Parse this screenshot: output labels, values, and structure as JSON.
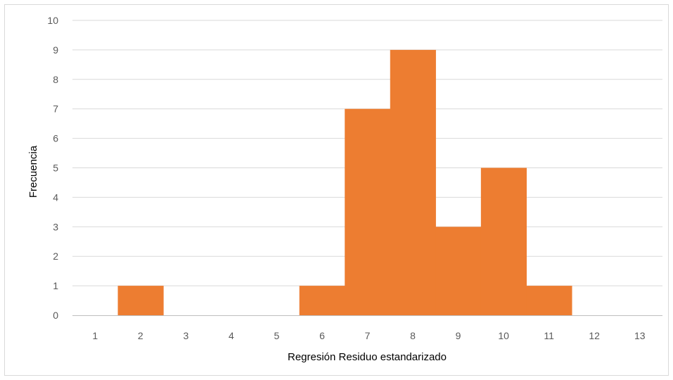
{
  "chart_data": {
    "type": "bar",
    "title": "",
    "xlabel": "Regresión Residuo estandarizado",
    "ylabel": "Frecuencia",
    "categories": [
      "1",
      "2",
      "3",
      "4",
      "5",
      "6",
      "7",
      "8",
      "9",
      "10",
      "11",
      "12",
      "13"
    ],
    "values": [
      0,
      1,
      0,
      0,
      0,
      1,
      7,
      9,
      3,
      5,
      1,
      0,
      0
    ],
    "ylim": [
      0,
      10
    ],
    "yticks": [
      0,
      1,
      2,
      3,
      4,
      5,
      6,
      7,
      8,
      9,
      10
    ],
    "grid": true,
    "legend": "none",
    "colors": {
      "bar": "#ED7D31",
      "grid": "#D9D9D9",
      "axis": "#BFBFBF",
      "tick_text": "#595959",
      "label_text": "#000000"
    }
  }
}
